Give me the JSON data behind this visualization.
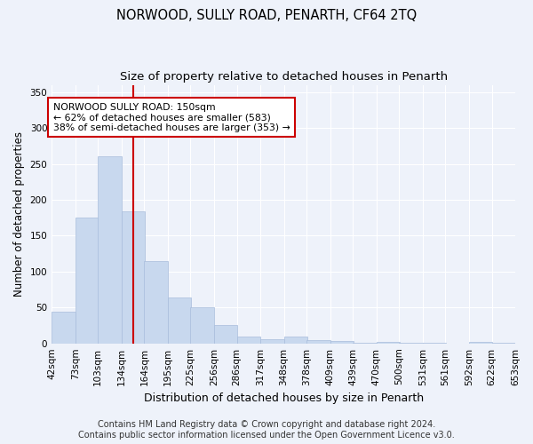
{
  "title": "NORWOOD, SULLY ROAD, PENARTH, CF64 2TQ",
  "subtitle": "Size of property relative to detached houses in Penarth",
  "xlabel": "Distribution of detached houses by size in Penarth",
  "ylabel": "Number of detached properties",
  "bar_color": "#c8d8ee",
  "bar_edge_color": "#a8bcdc",
  "background_color": "#eef2fa",
  "grid_color": "#ffffff",
  "vline_x": 150,
  "vline_color": "#cc0000",
  "annotation_text": "NORWOOD SULLY ROAD: 150sqm\n← 62% of detached houses are smaller (583)\n38% of semi-detached houses are larger (353) →",
  "annotation_box_color": "#ffffff",
  "annotation_box_edge_color": "#cc0000",
  "bins": [
    42,
    73,
    103,
    134,
    164,
    195,
    225,
    256,
    286,
    317,
    348,
    378,
    409,
    439,
    470,
    500,
    531,
    561,
    592,
    622,
    653
  ],
  "bin_labels": [
    "42sqm",
    "73sqm",
    "103sqm",
    "134sqm",
    "164sqm",
    "195sqm",
    "225sqm",
    "256sqm",
    "286sqm",
    "317sqm",
    "348sqm",
    "378sqm",
    "409sqm",
    "439sqm",
    "470sqm",
    "500sqm",
    "531sqm",
    "561sqm",
    "592sqm",
    "622sqm",
    "653sqm"
  ],
  "values": [
    44,
    175,
    260,
    184,
    114,
    64,
    50,
    25,
    9,
    6,
    9,
    5,
    3,
    1,
    2,
    1,
    1,
    0,
    2,
    1
  ],
  "ylim": [
    0,
    360
  ],
  "yticks": [
    0,
    50,
    100,
    150,
    200,
    250,
    300,
    350
  ],
  "footer_text": "Contains HM Land Registry data © Crown copyright and database right 2024.\nContains public sector information licensed under the Open Government Licence v3.0.",
  "title_fontsize": 10.5,
  "subtitle_fontsize": 9.5,
  "label_fontsize": 8.5,
  "tick_fontsize": 7.5,
  "footer_fontsize": 7
}
